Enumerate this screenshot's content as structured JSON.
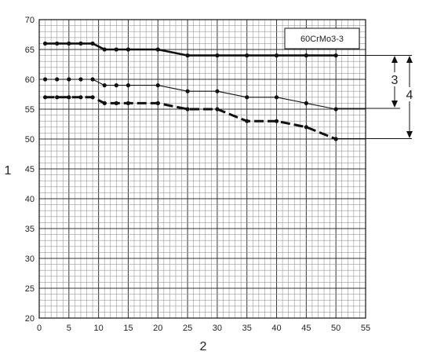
{
  "chart_data": {
    "type": "line",
    "x": [
      1,
      3,
      5,
      7,
      9,
      11,
      13,
      15,
      20,
      25,
      30,
      35,
      40,
      45,
      50
    ],
    "series": [
      {
        "style": "thick-solid",
        "values": [
          66,
          66,
          66,
          66,
          66,
          65,
          65,
          65,
          65,
          64,
          64,
          64,
          64,
          64,
          64
        ]
      },
      {
        "style": "thin-solid",
        "values": [
          60,
          60,
          60,
          60,
          60,
          59,
          59,
          59,
          59,
          58,
          58,
          57,
          57,
          56,
          55
        ]
      },
      {
        "style": "thick-dashed",
        "values": [
          57,
          57,
          57,
          57,
          57,
          56,
          56,
          56,
          56,
          55,
          55,
          53,
          53,
          52,
          50
        ]
      }
    ],
    "xlim": [
      0,
      55
    ],
    "ylim": [
      20,
      70
    ],
    "x_ticks": [
      "0",
      "5",
      "10",
      "15",
      "20",
      "25",
      "30",
      "35",
      "40",
      "45",
      "50",
      "55"
    ],
    "y_ticks": [
      "20",
      "25",
      "30",
      "35",
      "40",
      "45",
      "50",
      "55",
      "60",
      "65",
      "70"
    ],
    "ylabel": "1",
    "xlabel": "2",
    "legend_box": "60CrMo3-3",
    "grid": true,
    "callout_labels": [
      "3",
      "4"
    ],
    "colors": {
      "grid_minor": "#9a9a9a",
      "grid_major": "#333333",
      "line": "#111111"
    }
  }
}
